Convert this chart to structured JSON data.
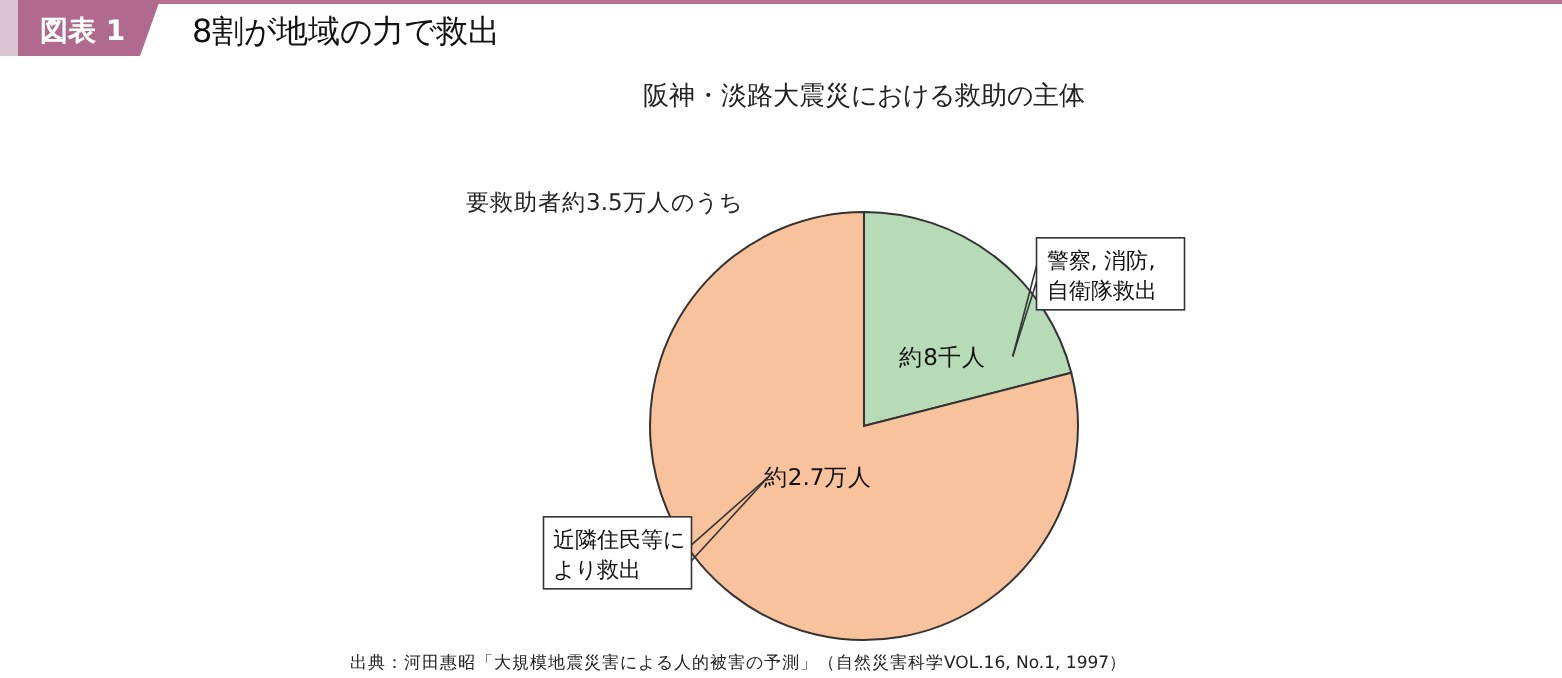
{
  "chart_data": {
    "type": "pie",
    "title": "8割が地域の力で救出",
    "subtitle": "阪神・淡路大震災における救助の主体",
    "categories": [
      "警察, 消防,自衛隊救出",
      "近隣住民等により救出"
    ],
    "values": [
      21,
      79
    ],
    "value_labels": [
      "約8千人",
      "約2.7万人"
    ],
    "colors": [
      "#b6dbb6",
      "#f7c29c"
    ],
    "annotations": [
      "図表 1",
      "要救助者約3.5万人のうち",
      "出典：河田惠昭「大規模地震災害による人的被害の予測」（自然災害科学VOL.16, No.1, 1997）"
    ]
  }
}
